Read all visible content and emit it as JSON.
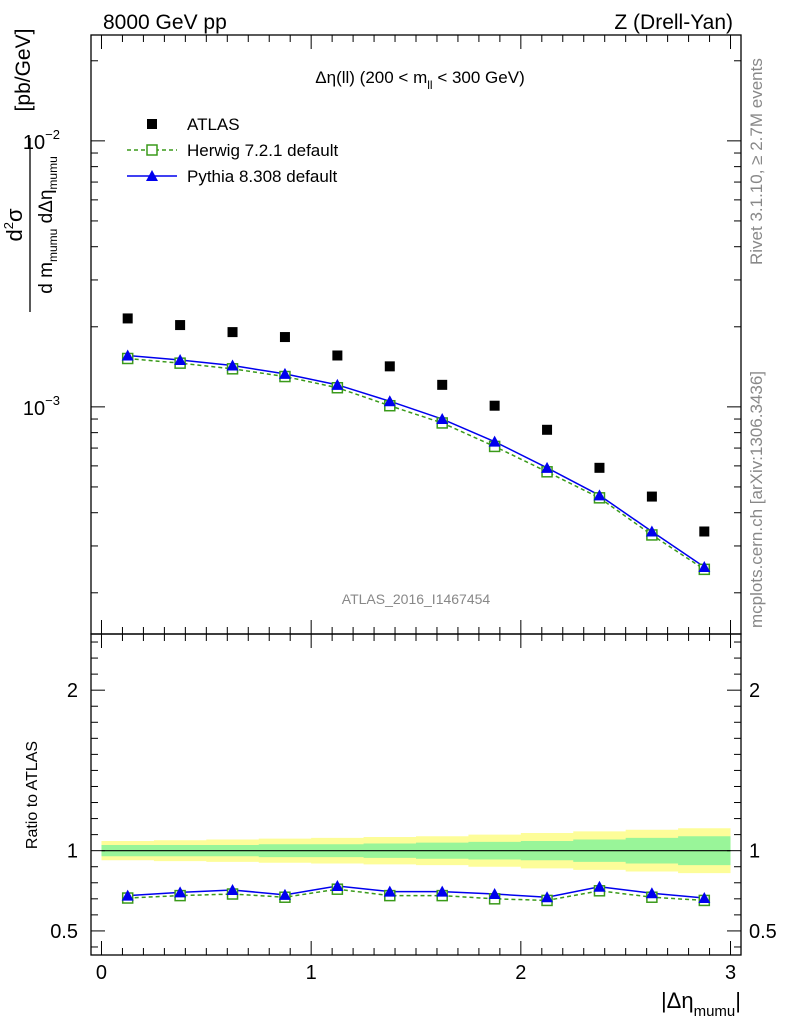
{
  "header": {
    "left": "8000 GeV pp",
    "right": "Z (Drell-Yan)"
  },
  "side_text": {
    "rivet": "Rivet 3.1.10, ≥ 2.7M events",
    "mcplots": "mcplots.cern.ch [arXiv:1306.3436]"
  },
  "analysis_id": "ATLAS_2016_I1467454",
  "plot_title": {
    "pre": "Δη(ll) (200 < m",
    "sub": "ll",
    "post": " < 300 GeV)"
  },
  "colors": {
    "atlas": "#000000",
    "herwig": "#3a9a1a",
    "pythia": "#0000ee",
    "band_inner": "#99f599",
    "band_outer": "#fdfd99"
  },
  "chart_data": [
    {
      "type": "line",
      "panel": "main",
      "yscale": "log",
      "xlim": [
        -0.05,
        3.05
      ],
      "ylim": [
        0.00014,
        0.025
      ],
      "ylabel": {
        "num_main": "d",
        "num_sup": "2",
        "num_sym": "σ",
        "den_d1": "d m",
        "den_sub1": "mumu",
        "den_d2": " dΔη",
        "den_sub2": "mumu",
        "unit": "[pb/GeV]"
      },
      "y_ticks": [
        {
          "value": 0.001,
          "base": "10",
          "exp": "−3"
        },
        {
          "value": 0.01,
          "base": "10",
          "exp": "−2"
        }
      ],
      "x": [
        0.125,
        0.375,
        0.625,
        0.875,
        1.125,
        1.375,
        1.625,
        1.875,
        2.125,
        2.375,
        2.625,
        2.875
      ],
      "series": [
        {
          "name": "ATLAS",
          "marker": "square",
          "values": [
            0.00215,
            0.00203,
            0.00191,
            0.00183,
            0.00156,
            0.00142,
            0.00121,
            0.00101,
            0.00082,
            0.00059,
            0.00046,
            0.00034
          ]
        },
        {
          "name": "Herwig 7.2.1 default",
          "marker": "open-square",
          "line": "dashed",
          "values": [
            0.00152,
            0.00146,
            0.00139,
            0.0013,
            0.00118,
            0.00101,
            0.00087,
            0.00071,
            0.00057,
            0.000455,
            0.00033,
            0.000245
          ]
        },
        {
          "name": "Pythia 8.308 default",
          "marker": "triangle",
          "line": "solid",
          "values": [
            0.00156,
            0.0015,
            0.00143,
            0.00133,
            0.00121,
            0.00105,
            0.0009,
            0.00074,
            0.00059,
            0.000465,
            0.00034,
            0.00025
          ]
        }
      ],
      "legend": "top-left"
    },
    {
      "type": "line",
      "panel": "ratio",
      "ylim": [
        0.35,
        2.35
      ],
      "ylabel": "Ratio to ATLAS",
      "y_ticks": [
        {
          "value": 0.5,
          "label": "0.5"
        },
        {
          "value": 1,
          "label": "1"
        },
        {
          "value": 2,
          "label": "2"
        }
      ],
      "x_ticks": [
        {
          "value": 0,
          "label": "0"
        },
        {
          "value": 1,
          "label": "1"
        },
        {
          "value": 2,
          "label": "2"
        },
        {
          "value": 3,
          "label": "3"
        }
      ],
      "xlabel": {
        "main": "|Δη",
        "sub": "mumu",
        "end": "|"
      },
      "x": [
        0.125,
        0.375,
        0.625,
        0.875,
        1.125,
        1.375,
        1.625,
        1.875,
        2.125,
        2.375,
        2.625,
        2.875
      ],
      "bands": {
        "inner": [
          0.035,
          0.035,
          0.035,
          0.04,
          0.04,
          0.045,
          0.05,
          0.055,
          0.06,
          0.07,
          0.08,
          0.09
        ],
        "outer": [
          0.06,
          0.065,
          0.07,
          0.075,
          0.08,
          0.085,
          0.09,
          0.1,
          0.11,
          0.12,
          0.13,
          0.14
        ]
      },
      "series": [
        {
          "name": "Herwig 7.2.1 default",
          "values": [
            0.705,
            0.72,
            0.73,
            0.71,
            0.76,
            0.72,
            0.72,
            0.7,
            0.69,
            0.75,
            0.71,
            0.69
          ]
        },
        {
          "name": "Pythia 8.308 default",
          "values": [
            0.72,
            0.74,
            0.755,
            0.725,
            0.78,
            0.745,
            0.745,
            0.73,
            0.71,
            0.775,
            0.735,
            0.705
          ]
        }
      ]
    }
  ]
}
